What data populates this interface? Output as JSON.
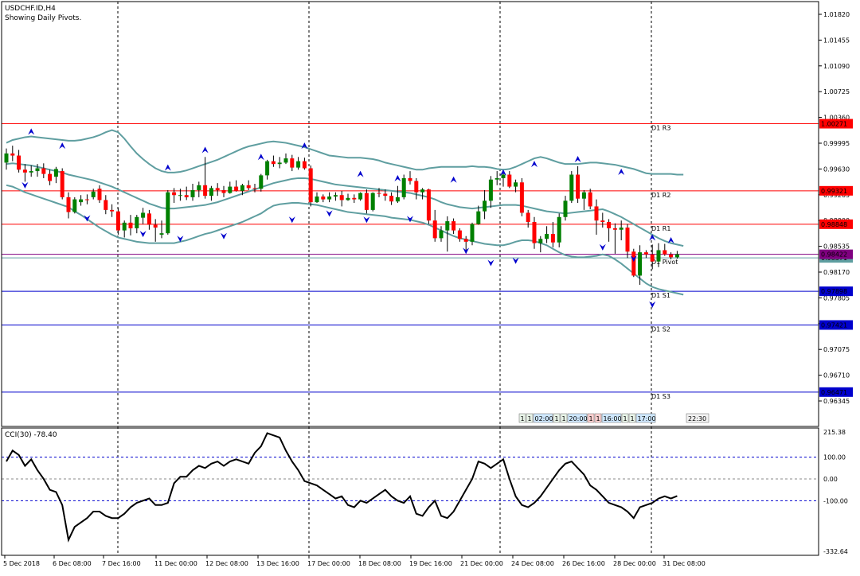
{
  "header": {
    "symbol": "USDCHF.ID,H4",
    "subtitle": "Showing Daily Pivots."
  },
  "colors": {
    "background": "#ffffff",
    "bull": "#008000",
    "bear": "#ff0000",
    "band": "#5f9ea0",
    "resistance": "#ff0000",
    "support": "#0000cd",
    "pivot": "#800080",
    "fractal": "#0000cd",
    "cci": "#000000"
  },
  "price_axis": {
    "ticks": [
      "1.01820",
      "1.01455",
      "1.01090",
      "1.00725",
      "1.00360",
      "0.99995",
      "0.99630",
      "0.99265",
      "0.98900",
      "0.98535",
      "0.98170",
      "0.97805",
      "0.97440",
      "0.97075",
      "0.96710",
      "0.96345"
    ]
  },
  "pivot_lines": [
    {
      "label": "D1 R3",
      "value": 1.00271,
      "price_label": "1.00271",
      "kind": "resistance"
    },
    {
      "label": "D1 R2",
      "value": 0.99321,
      "price_label": "0.99321",
      "kind": "resistance"
    },
    {
      "label": "D1 R1",
      "value": 0.98848,
      "price_label": "0.98848",
      "kind": "resistance"
    },
    {
      "label": "D1 Pivot",
      "value": 0.98371,
      "price_label": "0.98371",
      "kind": "pivot"
    },
    {
      "label": "D1 S1",
      "value": 0.97898,
      "price_label": "0.97898",
      "kind": "support"
    },
    {
      "label": "D1 S2",
      "value": 0.97421,
      "price_label": "0.97421",
      "kind": "support"
    },
    {
      "label": "D1 S3",
      "value": 0.96471,
      "price_label": "0.96471",
      "kind": "support"
    }
  ],
  "current_price": {
    "value": 0.98422,
    "label": "0.98422"
  },
  "session_bar": {
    "items": [
      "1",
      "1",
      "02:00",
      "1",
      "1",
      "20:00",
      "1",
      "1",
      "16:00",
      "1",
      "1",
      "17:00"
    ],
    "end_time": "22:30"
  },
  "cci_panel": {
    "title": "CCI(30) -78.40",
    "axis_ticks": [
      "215.38",
      "100.00",
      "0.00",
      "-100.00",
      "-332.64"
    ]
  },
  "time_axis": {
    "labels": [
      "5 Dec 2018",
      "6 Dec 08:00",
      "7 Dec 16:00",
      "11 Dec 00:00",
      "12 Dec 08:00",
      "13 Dec 16:00",
      "17 Dec 00:00",
      "18 Dec 08:00",
      "19 Dec 16:00",
      "21 Dec 00:00",
      "24 Dec 08:00",
      "26 Dec 16:00",
      "28 Dec 00:00",
      "31 Dec 08:00"
    ]
  },
  "chart_data": {
    "type": "candlestick",
    "title": "USDCHF.ID,H4",
    "period": "H4",
    "ylim": [
      0.963,
      1.02
    ],
    "candles": [
      [
        0.9972,
        0.9992,
        0.9962,
        0.9985
      ],
      [
        0.9985,
        0.9996,
        0.9974,
        0.9982
      ],
      [
        0.9982,
        0.999,
        0.9958,
        0.9962
      ],
      [
        0.9962,
        0.997,
        0.9945,
        0.9958
      ],
      [
        0.9958,
        0.9968,
        0.9952,
        0.996
      ],
      [
        0.996,
        0.997,
        0.9952,
        0.9964
      ],
      [
        0.9964,
        0.9971,
        0.995,
        0.9956
      ],
      [
        0.9956,
        0.9962,
        0.994,
        0.9946
      ],
      [
        0.9952,
        0.9966,
        0.9943,
        0.9963
      ],
      [
        0.996,
        0.9964,
        0.992,
        0.9923
      ],
      [
        0.9923,
        0.993,
        0.9893,
        0.9902
      ],
      [
        0.9902,
        0.9923,
        0.99,
        0.992
      ],
      [
        0.9916,
        0.9926,
        0.9911,
        0.992
      ],
      [
        0.992,
        0.9927,
        0.9913,
        0.9919
      ],
      [
        0.9923,
        0.9935,
        0.992,
        0.9931
      ],
      [
        0.9935,
        0.994,
        0.9915,
        0.9919
      ],
      [
        0.9919,
        0.9926,
        0.9899,
        0.9905
      ],
      [
        0.9905,
        0.9913,
        0.9895,
        0.9903
      ],
      [
        0.9903,
        0.9908,
        0.987,
        0.9876
      ],
      [
        0.9876,
        0.989,
        0.9866,
        0.9887
      ],
      [
        0.9887,
        0.9898,
        0.9869,
        0.9879
      ],
      [
        0.9879,
        0.9898,
        0.9872,
        0.9895
      ],
      [
        0.9894,
        0.9908,
        0.9885,
        0.9901
      ],
      [
        0.99,
        0.9905,
        0.9877,
        0.9884
      ],
      [
        0.9884,
        0.9892,
        0.986,
        0.988
      ],
      [
        0.987,
        0.989,
        0.9865,
        0.9872
      ],
      [
        0.9872,
        0.9933,
        0.987,
        0.993
      ],
      [
        0.993,
        0.9936,
        0.9915,
        0.9926
      ],
      [
        0.9926,
        0.9935,
        0.9918,
        0.9926
      ],
      [
        0.9926,
        0.9938,
        0.9919,
        0.9923
      ],
      [
        0.9923,
        0.9942,
        0.9918,
        0.9933
      ],
      [
        0.9933,
        0.9945,
        0.9923,
        0.994
      ],
      [
        0.994,
        0.998,
        0.9921,
        0.9925
      ],
      [
        0.9925,
        0.9939,
        0.9918,
        0.9936
      ],
      [
        0.9936,
        0.9943,
        0.9925,
        0.9933
      ],
      [
        0.9933,
        0.9939,
        0.9923,
        0.9929
      ],
      [
        0.9929,
        0.9945,
        0.9928,
        0.9938
      ],
      [
        0.9938,
        0.9947,
        0.9931,
        0.9932
      ],
      [
        0.9932,
        0.9942,
        0.9926,
        0.994
      ],
      [
        0.994,
        0.9947,
        0.9933,
        0.9936
      ],
      [
        0.9936,
        0.9942,
        0.993,
        0.9935
      ],
      [
        0.9935,
        0.9956,
        0.9931,
        0.9954
      ],
      [
        0.9954,
        0.9976,
        0.9948,
        0.9974
      ],
      [
        0.9974,
        0.9982,
        0.9966,
        0.997
      ],
      [
        0.997,
        0.998,
        0.9964,
        0.9972
      ],
      [
        0.9972,
        0.9985,
        0.997,
        0.9978
      ],
      [
        0.9978,
        0.9983,
        0.996,
        0.9965
      ],
      [
        0.9965,
        0.998,
        0.9962,
        0.9974
      ],
      [
        0.9974,
        0.9979,
        0.9962,
        0.9964
      ],
      [
        0.9964,
        0.9968,
        0.991,
        0.9916
      ],
      [
        0.9916,
        0.993,
        0.9915,
        0.9924
      ],
      [
        0.9924,
        0.9927,
        0.9916,
        0.992
      ],
      [
        0.992,
        0.993,
        0.9916,
        0.9924
      ],
      [
        0.9924,
        0.993,
        0.9918,
        0.9926
      ],
      [
        0.9926,
        0.9932,
        0.991,
        0.9919
      ],
      [
        0.9919,
        0.9928,
        0.9918,
        0.9922
      ],
      [
        0.9922,
        0.9927,
        0.9915,
        0.992
      ],
      [
        0.992,
        0.993,
        0.9918,
        0.9929
      ],
      [
        0.9929,
        0.9934,
        0.99,
        0.9905
      ],
      [
        0.9905,
        0.993,
        0.9903,
        0.9929
      ],
      [
        0.9929,
        0.9936,
        0.9923,
        0.9928
      ],
      [
        0.9928,
        0.9934,
        0.9918,
        0.9925
      ],
      [
        0.9925,
        0.993,
        0.9912,
        0.9917
      ],
      [
        0.9917,
        0.9939,
        0.9915,
        0.9923
      ],
      [
        0.9923,
        0.9955,
        0.992,
        0.995
      ],
      [
        0.995,
        0.996,
        0.9941,
        0.9946
      ],
      [
        0.9946,
        0.995,
        0.992,
        0.993
      ],
      [
        0.993,
        0.9936,
        0.992,
        0.9934
      ],
      [
        0.9934,
        0.9935,
        0.9885,
        0.989
      ],
      [
        0.989,
        0.9905,
        0.986,
        0.9865
      ],
      [
        0.9865,
        0.9882,
        0.986,
        0.9876
      ],
      [
        0.9876,
        0.9896,
        0.9846,
        0.9889
      ],
      [
        0.9889,
        0.9893,
        0.9871,
        0.9876
      ],
      [
        0.9876,
        0.9879,
        0.986,
        0.9864
      ],
      [
        0.9864,
        0.9868,
        0.9845,
        0.986
      ],
      [
        0.986,
        0.9887,
        0.9855,
        0.9885
      ],
      [
        0.9885,
        0.9911,
        0.9884,
        0.9903
      ],
      [
        0.9903,
        0.9933,
        0.9892,
        0.9918
      ],
      [
        0.9918,
        0.9953,
        0.9908,
        0.9948
      ],
      [
        0.9948,
        0.996,
        0.994,
        0.995
      ],
      [
        0.995,
        0.996,
        0.9938,
        0.9955
      ],
      [
        0.9955,
        0.996,
        0.9936,
        0.9938
      ],
      [
        0.9938,
        0.9948,
        0.993,
        0.9944
      ],
      [
        0.9944,
        0.995,
        0.9896,
        0.9901
      ],
      [
        0.9901,
        0.9905,
        0.988,
        0.9888
      ],
      [
        0.9888,
        0.9895,
        0.985,
        0.9858
      ],
      [
        0.9858,
        0.9868,
        0.9845,
        0.9864
      ],
      [
        0.9864,
        0.9882,
        0.9858,
        0.9871
      ],
      [
        0.9871,
        0.9888,
        0.9852,
        0.9859
      ],
      [
        0.9859,
        0.99,
        0.9852,
        0.9895
      ],
      [
        0.9895,
        0.9925,
        0.989,
        0.9918
      ],
      [
        0.9918,
        0.996,
        0.9915,
        0.9955
      ],
      [
        0.9955,
        0.9967,
        0.9915,
        0.9921
      ],
      [
        0.9921,
        0.9933,
        0.9905,
        0.993
      ],
      [
        0.993,
        0.9935,
        0.9906,
        0.991
      ],
      [
        0.991,
        0.992,
        0.987,
        0.989
      ],
      [
        0.989,
        0.9901,
        0.988,
        0.9888
      ],
      [
        0.9888,
        0.9892,
        0.986,
        0.9879
      ],
      [
        0.9879,
        0.9886,
        0.9843,
        0.9877
      ],
      [
        0.9877,
        0.989,
        0.9862,
        0.988
      ],
      [
        0.988,
        0.9885,
        0.9837,
        0.9846
      ],
      [
        0.9846,
        0.985,
        0.981,
        0.9812
      ],
      [
        0.9812,
        0.9855,
        0.9799,
        0.9845
      ],
      [
        0.9845,
        0.9848,
        0.9837,
        0.9842
      ],
      [
        0.9842,
        0.9856,
        0.9821,
        0.9832
      ],
      [
        0.9832,
        0.9858,
        0.9824,
        0.9848
      ],
      [
        0.9848,
        0.9857,
        0.984,
        0.9842
      ],
      [
        0.9842,
        0.9845,
        0.9835,
        0.9838
      ],
      [
        0.9838,
        0.9847,
        0.9836,
        0.98422
      ]
    ],
    "bollinger": {
      "upper": [
        1.0,
        1.0004,
        1.0006,
        1.0008,
        1.0009,
        1.0008,
        1.0007,
        1.0006,
        1.0005,
        1.0004,
        1.0003,
        1.0003,
        1.0004,
        1.0006,
        1.0008,
        1.0011,
        1.0015,
        1.0018,
        1.0015,
        1.0006,
        0.9995,
        0.9985,
        0.9977,
        0.997,
        0.9964,
        0.996,
        0.9958,
        0.9958,
        0.9959,
        0.9961,
        0.9964,
        0.9967,
        0.997,
        0.9973,
        0.9976,
        0.998,
        0.9984,
        0.9988,
        0.9992,
        0.9995,
        0.9997,
        0.9999,
        1.0001,
        1.0002,
        1.0001,
        1.0,
        0.9998,
        0.9996,
        0.9994,
        0.9991,
        0.9988,
        0.9985,
        0.9982,
        0.9981,
        0.998,
        0.9979,
        0.9979,
        0.9979,
        0.9978,
        0.9977,
        0.9975,
        0.9972,
        0.997,
        0.9968,
        0.9966,
        0.9964,
        0.9962,
        0.9962,
        0.9964,
        0.9965,
        0.9966,
        0.9966,
        0.9966,
        0.9966,
        0.9966,
        0.9967,
        0.9966,
        0.9966,
        0.9965,
        0.9963,
        0.9962,
        0.9963,
        0.9966,
        0.997,
        0.9974,
        0.9978,
        0.998,
        0.9978,
        0.9975,
        0.9972,
        0.997,
        0.997,
        0.997,
        0.9971,
        0.9972,
        0.9972,
        0.9971,
        0.997,
        0.9969,
        0.9967,
        0.9965,
        0.9963,
        0.996,
        0.9957,
        0.9956,
        0.9956,
        0.9956,
        0.9956,
        0.9955,
        0.9955
      ],
      "middle": [
        0.997,
        0.9971,
        0.997,
        0.9969,
        0.9968,
        0.9966,
        0.9964,
        0.9962,
        0.996,
        0.9958,
        0.9955,
        0.9953,
        0.9951,
        0.9949,
        0.9947,
        0.9944,
        0.9941,
        0.9938,
        0.9934,
        0.993,
        0.9926,
        0.9922,
        0.9918,
        0.9914,
        0.9911,
        0.9908,
        0.9907,
        0.9907,
        0.9908,
        0.9909,
        0.991,
        0.9911,
        0.9912,
        0.9914,
        0.9916,
        0.9919,
        0.9922,
        0.9925,
        0.9928,
        0.9931,
        0.9934,
        0.9937,
        0.994,
        0.9943,
        0.9945,
        0.9947,
        0.9949,
        0.995,
        0.995,
        0.9949,
        0.9947,
        0.9945,
        0.9943,
        0.9941,
        0.994,
        0.9939,
        0.9938,
        0.9937,
        0.9936,
        0.9935,
        0.9934,
        0.9933,
        0.9932,
        0.9931,
        0.993,
        0.9929,
        0.9927,
        0.9925,
        0.9923,
        0.992,
        0.9916,
        0.9913,
        0.9911,
        0.9909,
        0.9908,
        0.9907,
        0.9908,
        0.9909,
        0.991,
        0.9911,
        0.9912,
        0.9912,
        0.9912,
        0.9911,
        0.9909,
        0.9907,
        0.9905,
        0.9903,
        0.9902,
        0.9901,
        0.99,
        0.9901,
        0.9902,
        0.9903,
        0.9904,
        0.9905,
        0.9906,
        0.9903,
        0.9899,
        0.9895,
        0.989,
        0.9885,
        0.988,
        0.9875,
        0.987,
        0.9865,
        0.9861,
        0.9858,
        0.9856,
        0.9854
      ],
      "lower": [
        0.994,
        0.9938,
        0.9934,
        0.993,
        0.9927,
        0.9924,
        0.9921,
        0.9918,
        0.9915,
        0.9912,
        0.9909,
        0.9903,
        0.9898,
        0.9892,
        0.9886,
        0.988,
        0.9875,
        0.987,
        0.9866,
        0.9864,
        0.9862,
        0.986,
        0.9859,
        0.9858,
        0.9858,
        0.9858,
        0.9858,
        0.9858,
        0.986,
        0.9862,
        0.9865,
        0.9868,
        0.9871,
        0.9873,
        0.9876,
        0.9879,
        0.9882,
        0.9885,
        0.9888,
        0.9892,
        0.9896,
        0.99,
        0.9906,
        0.9911,
        0.9913,
        0.9914,
        0.9915,
        0.9915,
        0.9914,
        0.9913,
        0.9912,
        0.991,
        0.9908,
        0.9906,
        0.9904,
        0.9902,
        0.9901,
        0.99,
        0.9899,
        0.9898,
        0.9897,
        0.9896,
        0.9894,
        0.9893,
        0.9892,
        0.9891,
        0.9889,
        0.9887,
        0.9884,
        0.988,
        0.9876,
        0.9872,
        0.9868,
        0.9865,
        0.9863,
        0.9861,
        0.9859,
        0.9857,
        0.9856,
        0.9855,
        0.9855,
        0.9857,
        0.986,
        0.9862,
        0.9862,
        0.9861,
        0.9858,
        0.9855,
        0.985,
        0.9845,
        0.9841,
        0.9839,
        0.9838,
        0.9838,
        0.9839,
        0.984,
        0.9842,
        0.984,
        0.9835,
        0.9829,
        0.9822,
        0.9815,
        0.9808,
        0.9801,
        0.9796,
        0.9793,
        0.9791,
        0.9789,
        0.9787,
        0.9785
      ]
    },
    "fractals": {
      "up": [
        [
          4,
          1.0016
        ],
        [
          9,
          0.9996
        ],
        [
          26,
          0.9965
        ],
        [
          32,
          0.999
        ],
        [
          41,
          0.998
        ],
        [
          48,
          0.9996
        ],
        [
          57,
          0.9956
        ],
        [
          63,
          0.995
        ],
        [
          72,
          0.9948
        ],
        [
          80,
          0.9958
        ],
        [
          85,
          0.997
        ],
        [
          92,
          0.9977
        ],
        [
          99,
          0.9959
        ],
        [
          104,
          0.9866
        ],
        [
          107,
          0.9862
        ]
      ],
      "down": [
        [
          3,
          0.994
        ],
        [
          13,
          0.9893
        ],
        [
          22,
          0.9871
        ],
        [
          28,
          0.9864
        ],
        [
          35,
          0.9868
        ],
        [
          46,
          0.9891
        ],
        [
          52,
          0.99
        ],
        [
          58,
          0.9891
        ],
        [
          65,
          0.9892
        ],
        [
          74,
          0.9847
        ],
        [
          78,
          0.983
        ],
        [
          82,
          0.9833
        ],
        [
          96,
          0.9852
        ],
        [
          101,
          0.9836
        ],
        [
          104,
          0.9771
        ]
      ]
    },
    "cci": {
      "ylim": [
        -332.64,
        215.38
      ],
      "values": [
        80,
        130,
        110,
        60,
        90,
        40,
        0,
        -50,
        -60,
        -120,
        -280,
        -220,
        -200,
        -180,
        -150,
        -150,
        -170,
        -180,
        -180,
        -160,
        -130,
        -110,
        -100,
        -90,
        -120,
        -120,
        -110,
        -20,
        10,
        10,
        40,
        60,
        50,
        70,
        80,
        60,
        80,
        90,
        80,
        70,
        120,
        150,
        210,
        200,
        190,
        130,
        80,
        40,
        -10,
        -20,
        -30,
        -50,
        -70,
        -90,
        -80,
        -120,
        -130,
        -100,
        -110,
        -90,
        -70,
        -50,
        -80,
        -100,
        -110,
        -80,
        -160,
        -170,
        -130,
        -100,
        -170,
        -180,
        -150,
        -100,
        -50,
        0,
        80,
        70,
        50,
        70,
        90,
        0,
        -80,
        -120,
        -130,
        -110,
        -80,
        -40,
        0,
        40,
        70,
        80,
        50,
        20,
        -30,
        -50,
        -80,
        -110,
        -120,
        -130,
        -150,
        -180,
        -130,
        -120,
        -110,
        -90,
        -80,
        -90,
        -78.4
      ]
    }
  }
}
